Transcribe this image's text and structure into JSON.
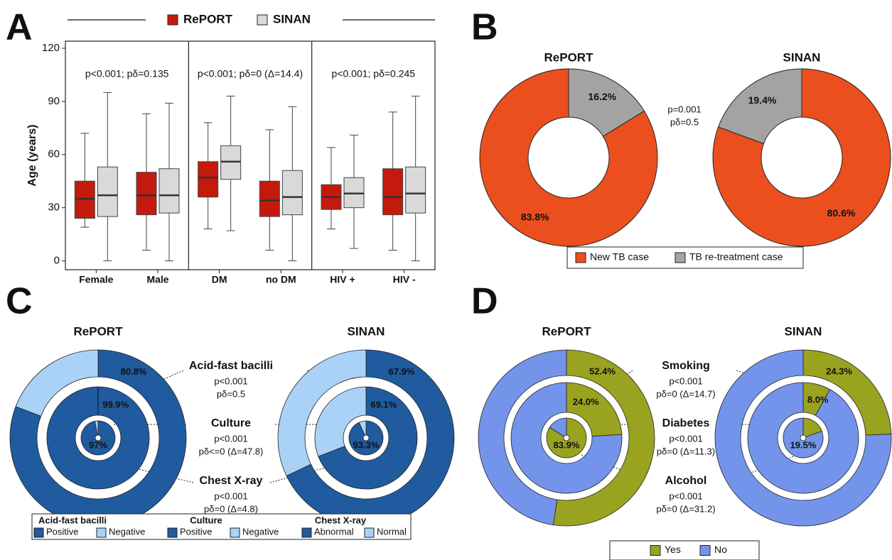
{
  "chart_data": [
    {
      "panel": "A",
      "type": "box",
      "ylabel": "Age (years)",
      "ylim": [
        -5,
        124
      ],
      "yticks": [
        0,
        30,
        60,
        90,
        120
      ],
      "categories": [
        "Female",
        "Male",
        "DM",
        "no DM",
        "HIV +",
        "HIV -"
      ],
      "annotations": [
        "p<0.001; pδ=0.135",
        "p<0.001; pδ=0 (Δ=14.4)",
        "p<0.001; pδ=0.245"
      ],
      "series": [
        {
          "name": "RePORT",
          "color": "#c41a0e",
          "min": [
            19,
            6,
            18,
            6,
            18,
            6
          ],
          "q1": [
            24,
            26,
            36,
            25,
            29,
            26
          ],
          "median": [
            35,
            37,
            47,
            34,
            36,
            36
          ],
          "q3": [
            45,
            50,
            56,
            45,
            43,
            52
          ],
          "max": [
            72,
            83,
            78,
            74,
            64,
            84
          ]
        },
        {
          "name": "SINAN",
          "color": "#d9d9d9",
          "min": [
            0,
            0,
            17,
            0,
            7,
            0
          ],
          "q1": [
            25,
            27,
            46,
            26,
            30,
            27
          ],
          "median": [
            37,
            37,
            56,
            36,
            38,
            38
          ],
          "q3": [
            53,
            52,
            65,
            51,
            47,
            53
          ],
          "max": [
            95,
            89,
            93,
            87,
            71,
            93
          ]
        }
      ]
    },
    {
      "panel": "B",
      "type": "donut",
      "categories": [
        "New TB case",
        "TB re-treatment case"
      ],
      "colors": [
        "#eb4f1e",
        "#a3a3a3"
      ],
      "stats": [
        "p=0.001",
        "pδ=0.5"
      ],
      "pies": [
        {
          "title": "RePORT",
          "direction": "counterclockwise",
          "values": [
            83.8,
            16.2
          ],
          "value_labels": [
            "83.8%",
            "16.2%"
          ]
        },
        {
          "title": "SINAN",
          "direction": "clockwise",
          "values": [
            80.6,
            19.4
          ],
          "value_labels": [
            "80.6%",
            "19.4%"
          ]
        }
      ]
    },
    {
      "panel": "C",
      "type": "nested-donut",
      "colors": [
        "#1f5b9e",
        "#aad2f6"
      ],
      "rings": [
        {
          "name": "Acid-fast bacilli",
          "categories": [
            "Positive",
            "Negative"
          ],
          "stats": [
            "p<0.001",
            "pδ=0.5"
          ]
        },
        {
          "name": "Culture",
          "categories": [
            "Positive",
            "Negative"
          ],
          "stats": [
            "p<0.001",
            "pδ<=0 (Δ=47.8)"
          ]
        },
        {
          "name": "Chest X-ray",
          "categories": [
            "Abnormal",
            "Normal"
          ],
          "stats": [
            "p<0.001",
            "pδ=0 (Δ=4.8)"
          ]
        }
      ],
      "pies": [
        {
          "title": "RePORT",
          "rings": [
            {
              "values": [
                80.8,
                19.2
              ],
              "value_label": "80.8%"
            },
            {
              "values": [
                99.9,
                0.1
              ],
              "value_label": "99.9%"
            },
            {
              "values": [
                97,
                3
              ],
              "value_label": "97%"
            }
          ]
        },
        {
          "title": "SINAN",
          "rings": [
            {
              "values": [
                67.9,
                32.1
              ],
              "value_label": "67.9%"
            },
            {
              "values": [
                69.1,
                30.9
              ],
              "value_label": "69.1%"
            },
            {
              "values": [
                93.3,
                6.7
              ],
              "value_label": "93.3%"
            }
          ]
        }
      ]
    },
    {
      "panel": "D",
      "type": "nested-donut",
      "colors": [
        "#9aa31f",
        "#7394ea"
      ],
      "categories": [
        "Yes",
        "No"
      ],
      "rings": [
        {
          "name": "Smoking",
          "stats": [
            "p<0.001",
            "pδ=0 (Δ=14.7)"
          ]
        },
        {
          "name": "Diabetes",
          "stats": [
            "p<0.001",
            "pδ=0 (Δ=11.3)"
          ]
        },
        {
          "name": "Alcohol",
          "stats": [
            "p<0.001",
            "pδ=0 (Δ=31.2)"
          ]
        }
      ],
      "pies": [
        {
          "title": "RePORT",
          "rings": [
            {
              "values": [
                52.4,
                47.6
              ],
              "value_label": "52.4%"
            },
            {
              "values": [
                24.0,
                76.0
              ],
              "value_label": "24.0%"
            },
            {
              "values": [
                83.9,
                16.1
              ],
              "value_label": "83.9%"
            }
          ]
        },
        {
          "title": "SINAN",
          "rings": [
            {
              "values": [
                24.3,
                75.7
              ],
              "value_label": "24.3%"
            },
            {
              "values": [
                8.0,
                92.0
              ],
              "value_label": "8.0%"
            },
            {
              "values": [
                19.5,
                80.5
              ],
              "value_label": "19.5%"
            }
          ]
        }
      ]
    }
  ]
}
